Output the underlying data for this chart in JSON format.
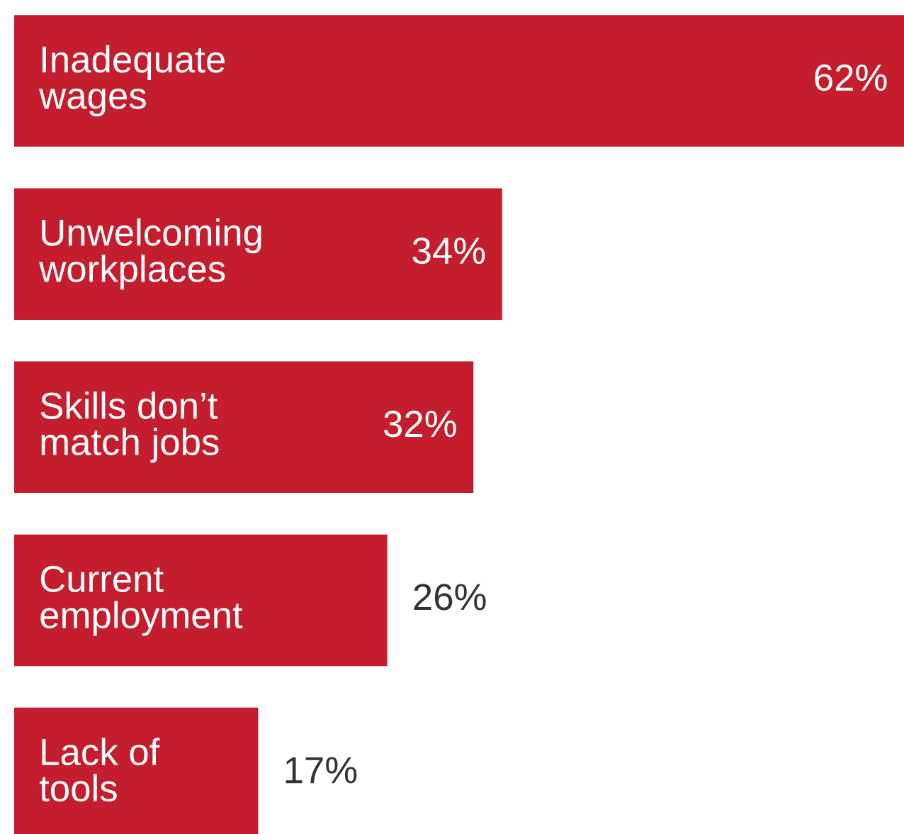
{
  "chart_data": {
    "type": "bar",
    "orientation": "horizontal",
    "categories": [
      "Inadequate\nwages",
      "Unwelcoming\nworkplaces",
      "Skills don’t\nmatch jobs",
      "Current\nemployment",
      "Lack of\ntools"
    ],
    "values": [
      62,
      34,
      32,
      26,
      17
    ],
    "value_labels": [
      "62%",
      "34%",
      "32%",
      "26%",
      "17%"
    ],
    "color": "#c41e2e"
  }
}
